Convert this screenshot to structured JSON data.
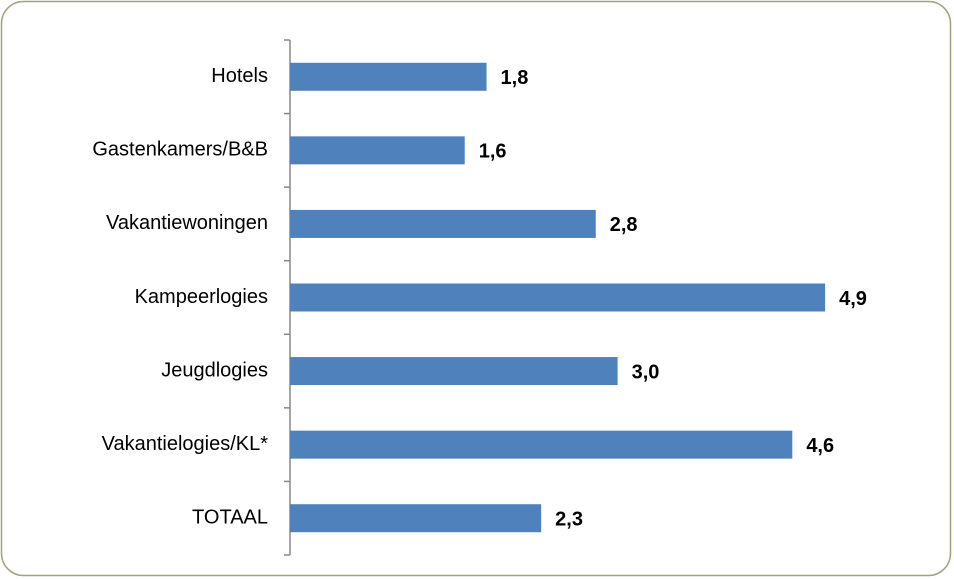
{
  "chart_data": {
    "type": "bar",
    "orientation": "horizontal",
    "categories": [
      "Hotels",
      "Gastenkamers/B&B",
      "Vakantiewoningen",
      "Kampeerlogies",
      "Jeugdlogies",
      "Vakantielogies/KL*",
      "TOTAAL"
    ],
    "values": [
      1.8,
      1.6,
      2.8,
      4.9,
      3.0,
      4.6,
      2.3
    ],
    "value_labels": [
      "1,8",
      "1,6",
      "2,8",
      "4,9",
      "3,0",
      "4,6",
      "2,3"
    ],
    "color": "#4f81bd",
    "xlim": [
      0,
      5
    ]
  }
}
